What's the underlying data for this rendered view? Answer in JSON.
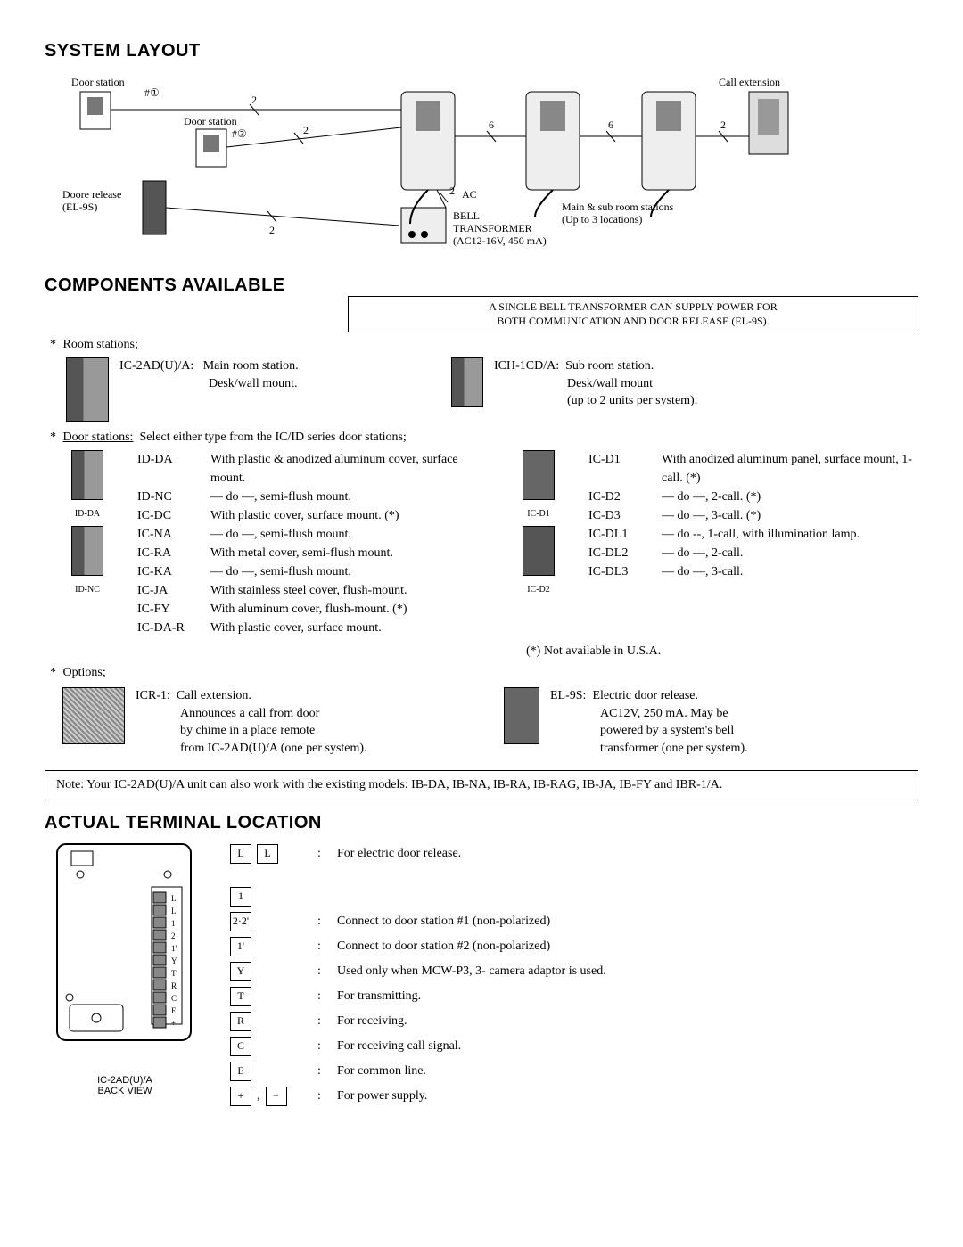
{
  "sections": {
    "layout_title": "SYSTEM LAYOUT",
    "components_title": "COMPONENTS AVAILABLE",
    "terminal_title": "ACTUAL TERMINAL LOCATION"
  },
  "layout": {
    "door_station": "Door station",
    "door_station1": "#①",
    "door_station2": "#②",
    "door_release": "Doore release",
    "door_release_model": "(EL-9S)",
    "call_extension": "Call extension",
    "ac": "AC",
    "bell": "BELL",
    "transformer": "TRANSFORMER",
    "transformer_spec": "(AC12-16V, 450 mA)",
    "main_sub": "Main & sub room stations",
    "main_sub_qty": "(Up to 3 locations)",
    "wire2a": "2",
    "wire2b": "2",
    "wire2c": "2",
    "wire2d": "2",
    "wire6a": "6",
    "wire6b": "6",
    "wire2e": "2"
  },
  "info_box": {
    "line1": "A SINGLE BELL TRANSFORMER CAN SUPPLY POWER FOR",
    "line2": "BOTH COMMUNICATION AND DOOR RELEASE (EL-9S)."
  },
  "room_stations": {
    "header": "Room stations;",
    "ic2ad_model": "IC-2AD(U)/A:",
    "ic2ad_desc1": "Main room station.",
    "ic2ad_desc2": "Desk/wall mount.",
    "ich_model": "ICH-1CD/A:",
    "ich_desc1": "Sub room station.",
    "ich_desc2": "Desk/wall mount",
    "ich_desc3": "(up to 2 units per system)."
  },
  "door_stations": {
    "header": "Door stations:",
    "header_note": "Select either type from the IC/ID series door stations;",
    "left_img1_label": "ID-DA",
    "left_img2_label": "ID-NC",
    "right_img1_label": "IC-D1",
    "right_img2_label": "IC-D2",
    "left": [
      {
        "m": "ID-DA",
        "d": "With plastic & anodized aluminum cover, surface mount."
      },
      {
        "m": "ID-NC",
        "d": "— do —, semi-flush mount."
      },
      {
        "m": "IC-DC",
        "d": "With plastic cover, surface mount. (*)"
      },
      {
        "m": "IC-NA",
        "d": "— do —, semi-flush mount."
      },
      {
        "m": "IC-RA",
        "d": "With metal cover, semi-flush mount."
      },
      {
        "m": "IC-KA",
        "d": "— do —, semi-flush mount."
      },
      {
        "m": "IC-JA",
        "d": "With stainless steel cover, flush-mount."
      },
      {
        "m": "IC-FY",
        "d": "With aluminum cover, flush-mount. (*)"
      },
      {
        "m": "IC-DA-R",
        "d": "With plastic cover, surface mount."
      }
    ],
    "right": [
      {
        "m": "IC-D1",
        "d": "With anodized aluminum panel, surface mount, 1-call. (*)"
      },
      {
        "m": "IC-D2",
        "d": "— do —, 2-call. (*)"
      },
      {
        "m": "IC-D3",
        "d": "— do —, 3-call. (*)"
      },
      {
        "m": "IC-DL1",
        "d": "— do --, 1-call, with illumination lamp."
      },
      {
        "m": "IC-DL2",
        "d": "— do —, 2-call."
      },
      {
        "m": "IC-DL3",
        "d": "— do —, 3-call."
      }
    ],
    "na_note": "(*) Not available in U.S.A."
  },
  "options": {
    "header": "Options;",
    "icr_model": "ICR-1:",
    "icr_title": "Call extension.",
    "icr_l1": "Announces a call from door",
    "icr_l2": "by chime in a place remote",
    "icr_l3": "from IC-2AD(U)/A (one per system).",
    "el9s_model": "EL-9S:",
    "el9s_title": "Electric door release.",
    "el9s_l1": "AC12V, 250 mA. May be",
    "el9s_l2": "powered by a system's bell",
    "el9s_l3": "transformer (one per system)."
  },
  "note": "Note:  Your IC-2AD(U)/A unit can also work with the existing models: IB-DA, IB-NA, IB-RA, IB-RAG, IB-JA, IB-FY and IBR-1/A.",
  "terminal": {
    "back_label": "IC-2AD(U)/A",
    "back_label2": "BACK VIEW",
    "rows": [
      {
        "sym": [
          "L",
          "L"
        ],
        "desc": "For electric door release."
      },
      {
        "sym": [
          "1"
        ],
        "desc": ""
      },
      {
        "sym": [
          "2·2'"
        ],
        "desc": "Connect to door station #1 (non-polarized)",
        "bracket_top": true
      },
      {
        "sym": [
          "1'"
        ],
        "desc": "Connect to door station #2 (non-polarized)",
        "bracket_bot": true
      },
      {
        "sym": [
          "Y"
        ],
        "desc": "Used only when MCW-P3, 3- camera adaptor is used."
      },
      {
        "sym": [
          "T"
        ],
        "desc": "For transmitting."
      },
      {
        "sym": [
          "R"
        ],
        "desc": "For receiving."
      },
      {
        "sym": [
          "C"
        ],
        "desc": "For receiving call signal."
      },
      {
        "sym": [
          "E"
        ],
        "desc": "For common line."
      },
      {
        "sym": [
          "+",
          "−"
        ],
        "desc": "For power supply.",
        "comma": true
      }
    ],
    "strip_labels": [
      "L",
      "L",
      "1",
      "2",
      "1'",
      "Y",
      "T",
      "R",
      "C",
      "E",
      "+"
    ]
  },
  "colors": {
    "text": "#000000",
    "bg": "#ffffff",
    "box_fill": "#888888"
  }
}
